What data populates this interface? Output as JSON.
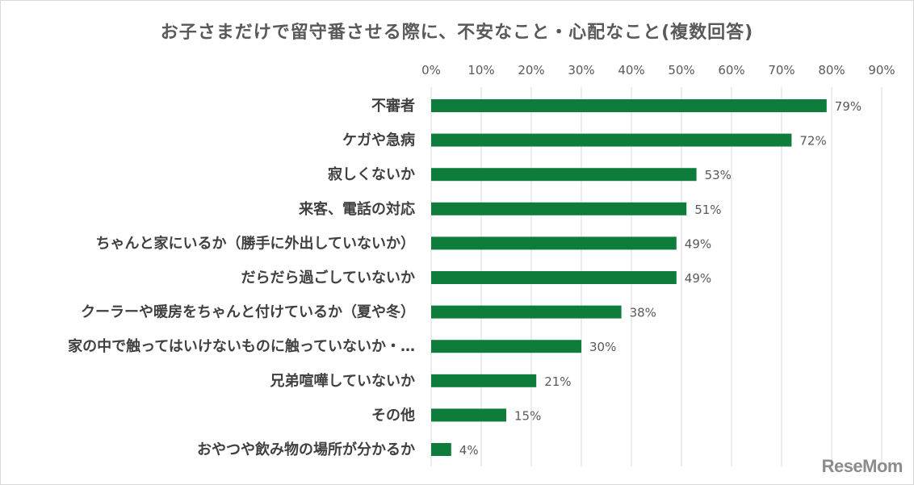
{
  "chart_data": {
    "type": "bar",
    "orientation": "horizontal",
    "title": "お子さまだけで留守番させる際に、不安なこと・心配なこと(複数回答)",
    "categories": [
      "不審者",
      "ケガや急病",
      "寂しくないか",
      "来客、電話の対応",
      "ちゃんと家にいるか（勝手に外出していないか）",
      "だらだら過ごしていないか",
      "クーラーや暖房をちゃんと付けているか（夏や冬）",
      "家の中で触ってはいけないものに触っていないか・…",
      "兄弟喧嘩していないか",
      "その他",
      "おやつや飲み物の場所が分かるか"
    ],
    "values": [
      79,
      72,
      53,
      51,
      49,
      49,
      38,
      30,
      21,
      15,
      4
    ],
    "data_labels": [
      "79%",
      "72%",
      "53%",
      "51%",
      "49%",
      "49%",
      "38%",
      "30%",
      "21%",
      "15%",
      "4%"
    ],
    "xlim": [
      0,
      90
    ],
    "xticks": [
      "0%",
      "10%",
      "20%",
      "30%",
      "40%",
      "50%",
      "60%",
      "70%",
      "80%",
      "90%"
    ],
    "x_axis_position": "top",
    "grid": true,
    "bar_color": "#0e7d3b",
    "grid_color": "#d9d9d9"
  },
  "watermark": "ReseMom"
}
